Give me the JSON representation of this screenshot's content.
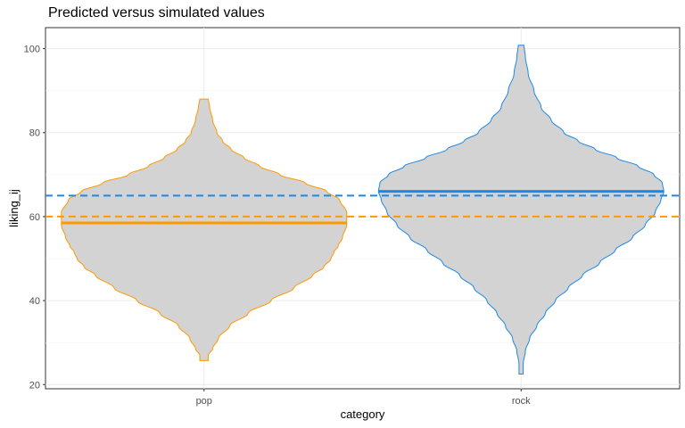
{
  "chart_data": {
    "type": "violin",
    "title": "Predicted versus simulated values",
    "xlabel": "category",
    "ylabel": "liking_ij",
    "categories": [
      "pop",
      "rock"
    ],
    "ylim": [
      19,
      105
    ],
    "yticks": [
      20,
      40,
      60,
      80,
      100
    ],
    "grid": true,
    "series": [
      {
        "category": "pop",
        "color": "#FF9900",
        "min": 25.7,
        "max": 88,
        "predicted_mean": 58.5,
        "simulated_mean": 60,
        "density_profile": [
          [
            25.7,
            0.03
          ],
          [
            27,
            0.03
          ],
          [
            28.5,
            0.06
          ],
          [
            31,
            0.1
          ],
          [
            34,
            0.18
          ],
          [
            37,
            0.31
          ],
          [
            40,
            0.47
          ],
          [
            43,
            0.63
          ],
          [
            46,
            0.76
          ],
          [
            48,
            0.84
          ],
          [
            50,
            0.89
          ],
          [
            51.5,
            0.91
          ],
          [
            53,
            0.94
          ],
          [
            55,
            0.97
          ],
          [
            58,
            1.0
          ],
          [
            61,
            1.0
          ],
          [
            64,
            0.95
          ],
          [
            66,
            0.86
          ],
          [
            68,
            0.71
          ],
          [
            70,
            0.53
          ],
          [
            72,
            0.39
          ],
          [
            74,
            0.28
          ],
          [
            76,
            0.19
          ],
          [
            78,
            0.13
          ],
          [
            80,
            0.09
          ],
          [
            83,
            0.06
          ],
          [
            86,
            0.04
          ],
          [
            88,
            0.03
          ]
        ]
      },
      {
        "category": "rock",
        "color": "#1E88E5",
        "min": 22.5,
        "max": 100.8,
        "predicted_mean": 66,
        "simulated_mean": 65,
        "density_profile": [
          [
            22.5,
            0.015
          ],
          [
            25,
            0.015
          ],
          [
            28,
            0.03
          ],
          [
            31,
            0.06
          ],
          [
            34,
            0.11
          ],
          [
            37,
            0.17
          ],
          [
            40,
            0.24
          ],
          [
            43,
            0.33
          ],
          [
            46,
            0.43
          ],
          [
            49,
            0.55
          ],
          [
            52,
            0.66
          ],
          [
            55,
            0.78
          ],
          [
            58,
            0.87
          ],
          [
            61,
            0.94
          ],
          [
            64,
            0.98
          ],
          [
            66,
            1.0
          ],
          [
            68,
            0.99
          ],
          [
            70,
            0.93
          ],
          [
            72,
            0.82
          ],
          [
            74,
            0.67
          ],
          [
            76,
            0.52
          ],
          [
            78,
            0.4
          ],
          [
            80,
            0.3
          ],
          [
            83,
            0.21
          ],
          [
            86,
            0.14
          ],
          [
            90,
            0.09
          ],
          [
            94,
            0.05
          ],
          [
            98,
            0.03
          ],
          [
            100.8,
            0.02
          ]
        ]
      }
    ]
  }
}
